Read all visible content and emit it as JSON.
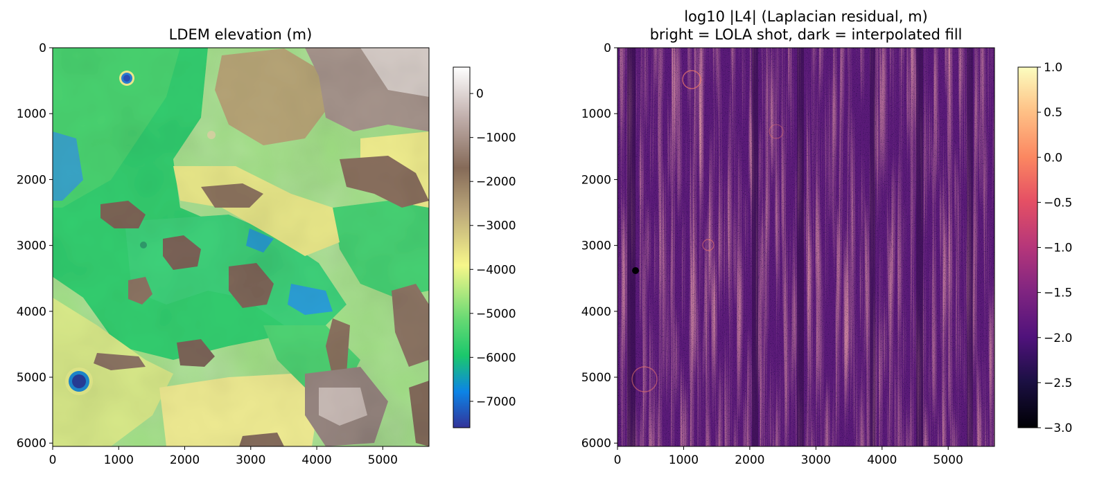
{
  "chart_data": [
    {
      "type": "heatmap",
      "title": "LDEM elevation (m)",
      "xlabel": "",
      "ylabel": "",
      "xlim": [
        0,
        5700
      ],
      "ylim": [
        6050,
        0
      ],
      "x_ticks": [
        0,
        1000,
        2000,
        3000,
        4000,
        5000
      ],
      "y_ticks": [
        0,
        1000,
        2000,
        3000,
        4000,
        5000,
        6000
      ],
      "colormap": "terrain",
      "colorbar": {
        "range": [
          -7600,
          600
        ],
        "ticks": [
          0,
          -1000,
          -2000,
          -3000,
          -4000,
          -5000,
          -6000,
          -7000
        ],
        "tick_labels": [
          "0",
          "−1000",
          "−2000",
          "−3000",
          "−4000",
          "−5000",
          "−6000",
          "−7000"
        ]
      },
      "features": [
        {
          "kind": "crater",
          "x": 1130,
          "y": 460,
          "value": -6800
        },
        {
          "kind": "crater",
          "x": 400,
          "y": 5080,
          "value": -7400
        },
        {
          "kind": "highland",
          "x": 4200,
          "y": 300,
          "value": -800
        },
        {
          "kind": "basin",
          "x": 2100,
          "y": 2700,
          "value": -5300
        },
        {
          "kind": "basin",
          "x": 4200,
          "y": 3900,
          "value": -6000
        },
        {
          "kind": "highland",
          "x": 4550,
          "y": 5400,
          "value": -1000
        }
      ]
    },
    {
      "type": "heatmap",
      "title": "log10 |L4| (Laplacian residual, m)",
      "subtitle": "bright = LOLA shot, dark = interpolated fill",
      "xlabel": "",
      "ylabel": "",
      "xlim": [
        0,
        5700
      ],
      "ylim": [
        6050,
        0
      ],
      "x_ticks": [
        0,
        1000,
        2000,
        3000,
        4000,
        5000
      ],
      "y_ticks": [
        0,
        1000,
        2000,
        3000,
        4000,
        5000,
        6000
      ],
      "colormap": "magma",
      "colorbar": {
        "range": [
          -3.0,
          1.0
        ],
        "ticks": [
          1.0,
          0.5,
          0.0,
          -0.5,
          -1.0,
          -1.5,
          -2.0,
          -2.5,
          -3.0
        ],
        "tick_labels": [
          "1.0",
          "0.5",
          "0.0",
          "−0.5",
          "−1.0",
          "−1.5",
          "−2.0",
          "−2.5",
          "−3.0"
        ]
      }
    }
  ]
}
